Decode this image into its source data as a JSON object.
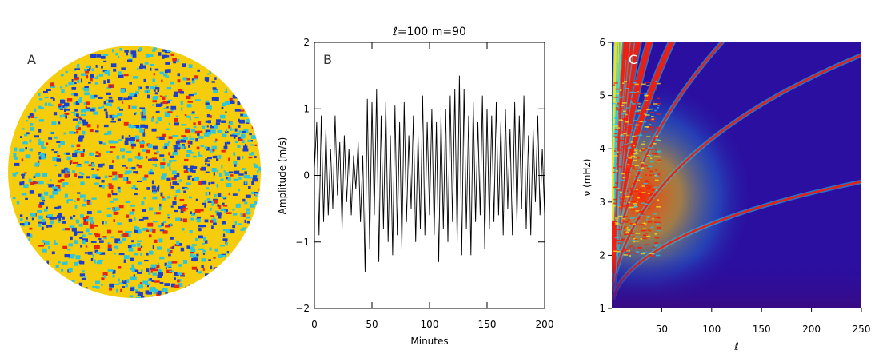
{
  "panels": {
    "a": {
      "label": "A"
    },
    "b": {
      "label": "B"
    },
    "c": {
      "label": "C"
    }
  },
  "colors": {
    "disk_base": "#f5cd0c",
    "disk_cyan": "#2ec6d8",
    "disk_blue": "#1d3fc9",
    "disk_red": "#e8250f",
    "spec_bg": "#2b0fa0",
    "ridge_cyan": "#1cc8f0",
    "ridge_yellow": "#f7e31a",
    "ridge_red": "#ff1500"
  },
  "chart_data": [
    {
      "type": "heatmap",
      "panel": "A",
      "description_visible": "solar disk Doppler image",
      "xlabel": "",
      "ylabel": "",
      "title": ""
    },
    {
      "type": "line",
      "panel": "B",
      "title": "ℓ=100 m=90",
      "xlabel": "Minutes",
      "ylabel": "Amplitude (m/s)",
      "xlim": [
        0,
        200
      ],
      "ylim": [
        -2,
        2
      ],
      "xticks": [
        "0",
        "50",
        "100",
        "150",
        "200"
      ],
      "yticks": [
        "−2",
        "−1",
        "0",
        "1",
        "2"
      ],
      "x": [
        0,
        2,
        4,
        6,
        8,
        10,
        12,
        14,
        16,
        18,
        20,
        22,
        24,
        26,
        28,
        30,
        32,
        34,
        36,
        38,
        40,
        42,
        44,
        46,
        48,
        50,
        52,
        54,
        56,
        58,
        60,
        62,
        64,
        66,
        68,
        70,
        72,
        74,
        76,
        78,
        80,
        82,
        84,
        86,
        88,
        90,
        92,
        94,
        96,
        98,
        100,
        102,
        104,
        106,
        108,
        110,
        112,
        114,
        116,
        118,
        120,
        122,
        124,
        126,
        128,
        130,
        132,
        134,
        136,
        138,
        140,
        142,
        144,
        146,
        148,
        150,
        152,
        154,
        156,
        158,
        160,
        162,
        164,
        166,
        168,
        170,
        172,
        174,
        176,
        178,
        180,
        182,
        184,
        186,
        188,
        190,
        192,
        194,
        196,
        198,
        200
      ],
      "values": [
        0.1,
        0.8,
        -0.9,
        0.9,
        -0.7,
        0.7,
        -0.6,
        0.4,
        -0.5,
        0.9,
        -0.3,
        0.5,
        -0.8,
        0.6,
        -0.4,
        0.4,
        -0.6,
        0.3,
        -0.2,
        0.5,
        -0.7,
        0.3,
        -1.45,
        1.15,
        -1.1,
        1.1,
        -0.6,
        1.3,
        -1.3,
        0.9,
        -0.8,
        1.1,
        -1.0,
        0.6,
        -1.2,
        1.05,
        -0.9,
        0.8,
        -1.1,
        1.1,
        -0.7,
        0.6,
        -0.5,
        0.9,
        -1.0,
        0.6,
        -0.8,
        1.2,
        -0.9,
        0.8,
        -0.6,
        1.0,
        -0.9,
        0.8,
        -1.3,
        0.9,
        -0.8,
        1.0,
        -1.0,
        1.2,
        -0.7,
        1.3,
        -1.0,
        1.5,
        -1.2,
        1.3,
        -0.8,
        0.9,
        -1.2,
        1.1,
        -0.7,
        0.8,
        -0.6,
        1.2,
        -1.1,
        1.0,
        -0.8,
        0.9,
        -0.7,
        1.1,
        -0.6,
        0.8,
        -0.9,
        1.0,
        -0.5,
        0.7,
        -0.9,
        1.1,
        -0.7,
        0.9,
        -0.5,
        1.2,
        -0.8,
        0.6,
        -0.9,
        0.7,
        -0.4,
        0.9,
        -0.6,
        0.4,
        -0.6
      ]
    },
    {
      "type": "heatmap",
      "panel": "C",
      "title": "",
      "xlabel": "ℓ",
      "ylabel": "ν (mHz)",
      "xlim": [
        0,
        250
      ],
      "ylim": [
        1,
        6
      ],
      "xticks": [
        "50",
        "100",
        "150",
        "200",
        "250"
      ],
      "yticks": [
        "1",
        "2",
        "3",
        "4",
        "5",
        "6"
      ]
    }
  ]
}
